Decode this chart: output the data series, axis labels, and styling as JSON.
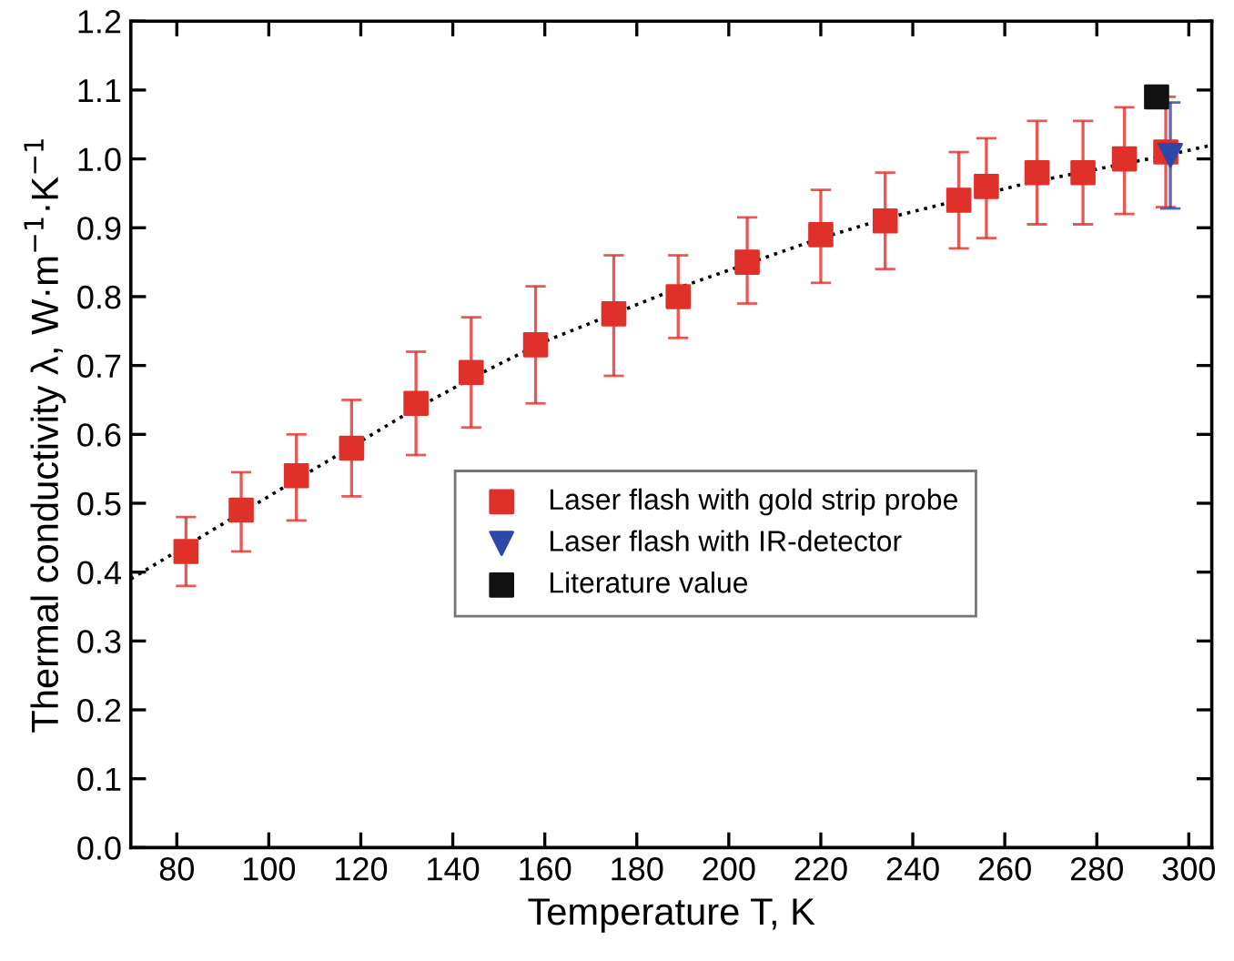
{
  "chart_data": {
    "type": "scatter",
    "xlabel": "Temperature T, K",
    "ylabel": "Thermal conductivity λ, W·m$^{−1}$·K$^{−1}$",
    "xlim": [
      70,
      305
    ],
    "ylim": [
      0,
      1.2
    ],
    "xticks": [
      80,
      100,
      120,
      140,
      160,
      180,
      200,
      220,
      240,
      260,
      280,
      300
    ],
    "yticks": [
      {
        "value": 0,
        "label": "0.0"
      },
      0.1,
      0.2,
      0.3,
      0.4,
      0.5,
      0.6,
      0.7,
      0.8,
      0.9,
      {
        "value": 1,
        "label": "1.0"
      },
      1.1,
      1.2
    ],
    "grid": false,
    "legend": "bottom right",
    "series": [
      {
        "type": "line",
        "color": "#000000",
        "line_style": "dotted",
        "marker": "none",
        "x": [
          70,
          85,
          100,
          115,
          130,
          145,
          160,
          175,
          190,
          205,
          220,
          235,
          250,
          265,
          280,
          295,
          305
        ],
        "values": [
          0.39,
          0.45,
          0.51,
          0.57,
          0.63,
          0.685,
          0.735,
          0.775,
          0.815,
          0.85,
          0.885,
          0.915,
          0.94,
          0.965,
          0.985,
          1.005,
          1.02
        ]
      },
      {
        "name": "Laser flash with gold strip probe",
        "color": "#e0302a",
        "marker": "square",
        "x": [
          82,
          94,
          106,
          118,
          132,
          144,
          158,
          175,
          189,
          204,
          220,
          234,
          250,
          256,
          267,
          277,
          286,
          295
        ],
        "values": [
          0.43,
          0.49,
          0.54,
          0.58,
          0.645,
          0.69,
          0.73,
          0.775,
          0.8,
          0.85,
          0.89,
          0.91,
          0.94,
          0.96,
          0.98,
          0.98,
          1.0,
          1.01
        ],
        "errors": [
          [
            0.38,
            0.48
          ],
          [
            0.43,
            0.545
          ],
          [
            0.475,
            0.6
          ],
          [
            0.51,
            0.65
          ],
          [
            0.57,
            0.72
          ],
          [
            0.61,
            0.77
          ],
          [
            0.645,
            0.815
          ],
          [
            0.685,
            0.86
          ],
          [
            0.74,
            0.86
          ],
          [
            0.79,
            0.915
          ],
          [
            0.82,
            0.955
          ],
          [
            0.84,
            0.98
          ],
          [
            0.87,
            1.01
          ],
          [
            0.885,
            1.03
          ],
          [
            0.905,
            1.055
          ],
          [
            0.905,
            1.055
          ],
          [
            0.92,
            1.075
          ],
          [
            0.93,
            1.09
          ]
        ]
      },
      {
        "name": "Laser flash with IR-detector",
        "color": "#2f47a8",
        "marker": "triangle",
        "x": [
          296
        ],
        "values": [
          1.005
        ],
        "errors": [
          [
            0.928,
            1.082
          ]
        ]
      },
      {
        "name": "Literature value",
        "color": "#111111",
        "marker": "square",
        "x": [
          293
        ],
        "values": [
          1.09
        ]
      }
    ]
  }
}
